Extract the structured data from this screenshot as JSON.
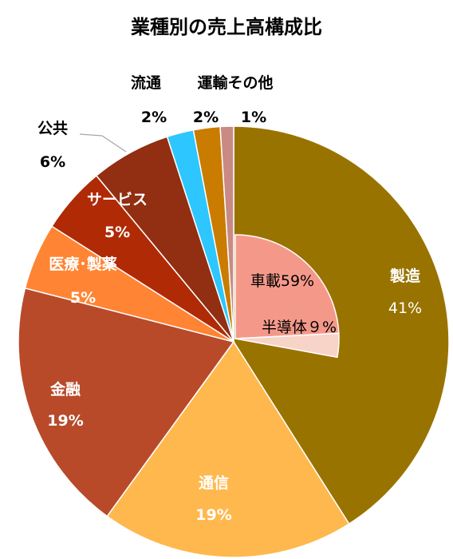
{
  "chart_data": {
    "type": "pie",
    "title": "業種別の売上高構成比",
    "slices": [
      {
        "name": "製造",
        "label": "41%",
        "value": 41,
        "color": "#997300"
      },
      {
        "name": "通信",
        "label": "19%",
        "value": 19,
        "color": "#FFB84D"
      },
      {
        "name": "金融",
        "label": "19%",
        "value": 19,
        "color": "#B84A2A"
      },
      {
        "name": "医療･製薬",
        "label": "5%",
        "value": 5,
        "color": "#FF8433"
      },
      {
        "name": "サービス",
        "label": "5%",
        "value": 5,
        "color": "#B02A06"
      },
      {
        "name": "公共",
        "label": "6%",
        "value": 6,
        "color": "#922E12"
      },
      {
        "name": "流通",
        "label": "2%",
        "value": 2,
        "color": "#2DC6FF"
      },
      {
        "name": "運輸",
        "label": "2%",
        "value": 2,
        "color": "#C97C00"
      },
      {
        "name": "その他",
        "label": "1%",
        "value": 1,
        "color": "#C98A84"
      }
    ],
    "sub_breakdown": {
      "parent": "製造",
      "items": [
        {
          "name": "車載",
          "label": "車載59%",
          "value": 59,
          "color": "#F4998A"
        },
        {
          "name": "半導体",
          "label": "半導体９%",
          "value": 9,
          "color": "#F8D3C8"
        }
      ]
    },
    "top_labels": {
      "group_names": "運輸その他",
      "unyu_pct": "2%",
      "sonota_pct": "1%"
    }
  }
}
